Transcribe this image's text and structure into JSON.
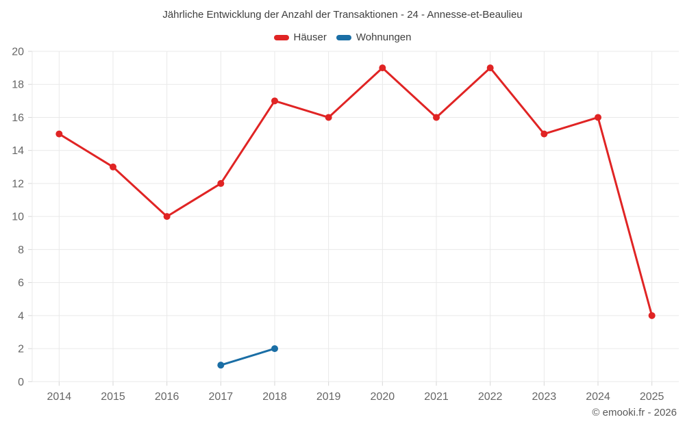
{
  "chart_data": {
    "type": "line",
    "title": "Jährliche Entwicklung der Anzahl der Transaktionen - 24 - Annesse-et-Beaulieu",
    "categories": [
      2014,
      2015,
      2016,
      2017,
      2018,
      2019,
      2020,
      2021,
      2022,
      2023,
      2024,
      2025
    ],
    "series": [
      {
        "name": "Häuser",
        "color": "#e02424",
        "x": [
          2014,
          2015,
          2016,
          2017,
          2018,
          2019,
          2020,
          2021,
          2022,
          2023,
          2024,
          2025
        ],
        "values": [
          15,
          13,
          10,
          12,
          17,
          16,
          19,
          16,
          19,
          15,
          16,
          4
        ]
      },
      {
        "name": "Wohnungen",
        "color": "#1a6ea5",
        "x": [
          2017,
          2018
        ],
        "values": [
          1,
          2
        ]
      }
    ],
    "ylim": [
      0,
      20
    ],
    "ytick_step": 2,
    "grid": true,
    "legend_position": "top",
    "xlabel": "",
    "ylabel": ""
  },
  "footer": {
    "copyright": "© emooki.fr - 2026"
  },
  "colors": {
    "background": "#ffffff",
    "grid": "#e9e9e9",
    "tick": "#d6d6d6",
    "axis_text": "#666666",
    "title_text": "#3e3e3e",
    "copyright_text": "#595959"
  }
}
